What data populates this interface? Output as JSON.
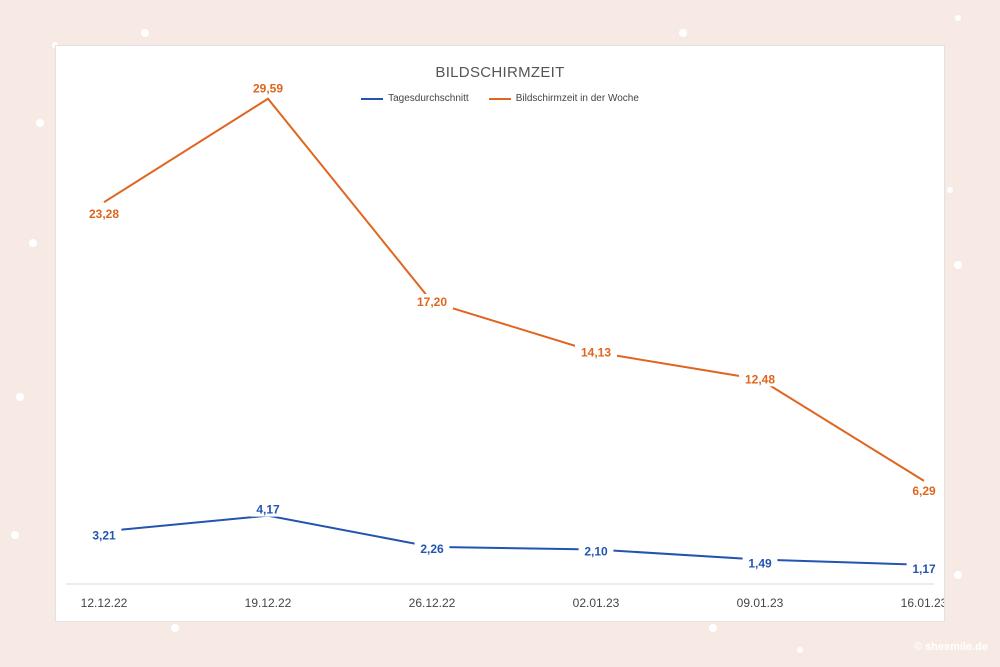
{
  "chart_data": {
    "type": "line",
    "title": "BILDSCHIRMZEIT",
    "categories": [
      "12.12.22",
      "19.12.22",
      "26.12.22",
      "02.01.23",
      "09.01.23",
      "16.01.23"
    ],
    "series": [
      {
        "name": "Tagesdurchschnitt",
        "color": "#2354b0",
        "values": [
          3.21,
          4.17,
          2.26,
          2.1,
          1.49,
          1.17
        ],
        "labels": [
          "3,21",
          "4,17",
          "2,26",
          "2,10",
          "1,49",
          "1,17"
        ]
      },
      {
        "name": "Bildschirmzeit in der Woche",
        "color": "#e0651e",
        "values": [
          23.28,
          29.59,
          17.2,
          14.13,
          12.48,
          6.29
        ],
        "labels": [
          "23,28",
          "29,59",
          "17,20",
          "14,13",
          "12,48",
          "6,29"
        ]
      }
    ],
    "ylim": [
      0,
      32
    ],
    "grid": false,
    "legend_position": "top"
  },
  "watermark": "© shesmile.de"
}
